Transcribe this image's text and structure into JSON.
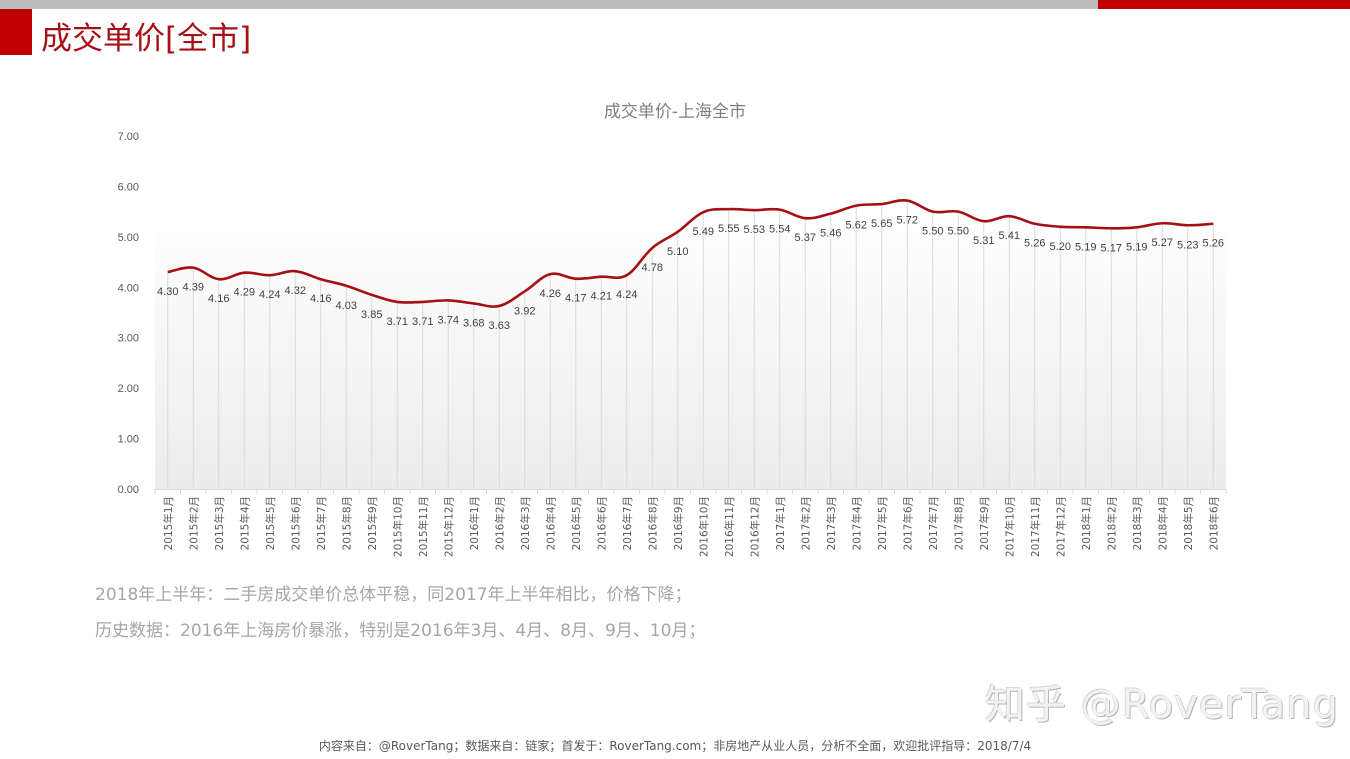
{
  "page": {
    "title": "成交单价[全市]",
    "notes": [
      "2018年上半年：二手房成交单价总体平稳，同2017年上半年相比，价格下降；",
      "历史数据：2016年上海房价暴涨，特别是2016年3月、4月、8月、9月、10月；"
    ],
    "watermark": "知乎 @RoverTang",
    "footer": "内容来自：@RoverTang；数据来自：链家；首发于：RoverTang.com；非房地产从业人员，分析不全面，欢迎批评指导：2018/7/4"
  },
  "colors": {
    "accent_red": "#c00000",
    "title_red": "#a50f15",
    "line": "#a50f15",
    "top_bar_gray": "#bcbcbc",
    "grid": "#d9d9d9",
    "text_gray": "#7f7f7f",
    "label_dark": "#404040"
  },
  "chart_data": {
    "type": "line",
    "title": "成交单价-上海全市",
    "xlabel": "",
    "ylabel": "",
    "ylim": [
      0,
      7
    ],
    "yticks": [
      "0.00",
      "1.00",
      "2.00",
      "3.00",
      "4.00",
      "5.00",
      "6.00",
      "7.00"
    ],
    "grid": "vertical drop lines per category",
    "legend": "none",
    "smooth": true,
    "categories": [
      "2015年1月",
      "2015年2月",
      "2015年3月",
      "2015年4月",
      "2015年5月",
      "2015年6月",
      "2015年7月",
      "2015年8月",
      "2015年9月",
      "2015年10月",
      "2015年11月",
      "2015年12月",
      "2016年1月",
      "2016年2月",
      "2016年3月",
      "2016年4月",
      "2016年5月",
      "2016年6月",
      "2016年7月",
      "2016年8月",
      "2016年9月",
      "2016年10月",
      "2016年11月",
      "2016年12月",
      "2017年1月",
      "2017年2月",
      "2017年3月",
      "2017年4月",
      "2017年5月",
      "2017年6月",
      "2017年7月",
      "2017年8月",
      "2017年9月",
      "2017年10月",
      "2017年11月",
      "2017年12月",
      "2018年1月",
      "2018年2月",
      "2018年3月",
      "2018年4月",
      "2018年5月",
      "2018年6月"
    ],
    "series": [
      {
        "name": "成交单价",
        "values": [
          4.3,
          4.39,
          4.16,
          4.29,
          4.24,
          4.32,
          4.16,
          4.03,
          3.85,
          3.71,
          3.71,
          3.74,
          3.68,
          3.63,
          3.92,
          4.26,
          4.17,
          4.21,
          4.24,
          4.78,
          5.1,
          5.49,
          5.55,
          5.53,
          5.54,
          5.37,
          5.46,
          5.62,
          5.65,
          5.72,
          5.5,
          5.5,
          5.31,
          5.41,
          5.26,
          5.2,
          5.19,
          5.17,
          5.19,
          5.27,
          5.23,
          5.26
        ]
      }
    ]
  }
}
